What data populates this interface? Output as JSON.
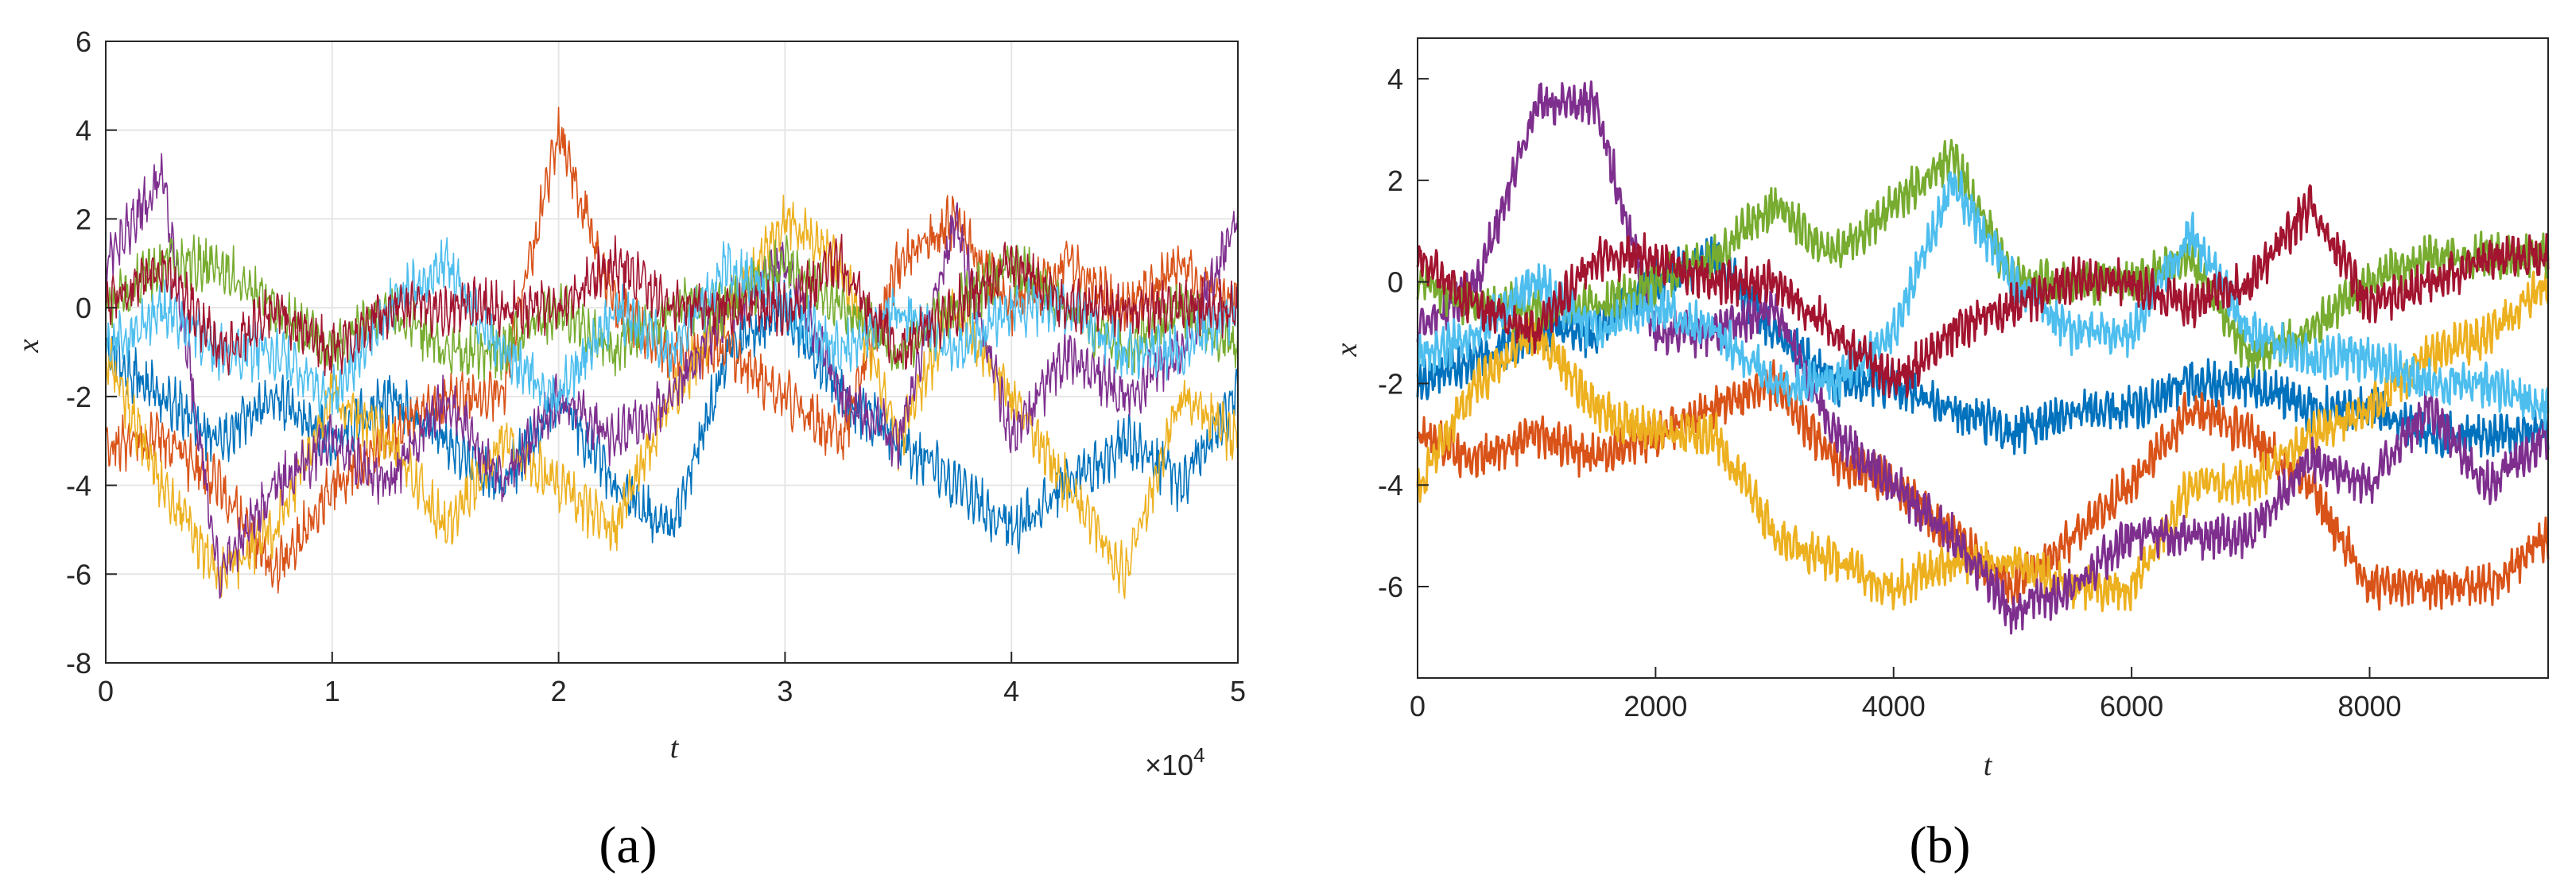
{
  "colors": {
    "series": [
      "#0072BD",
      "#D95319",
      "#EDB120",
      "#7E2F8E",
      "#77AC30",
      "#4DBEEE",
      "#A2142F"
    ],
    "axis": "#262626",
    "grid": "#e6e6e6"
  },
  "chart_data": [
    {
      "type": "line",
      "panel_label": "(a)",
      "xlabel": "t",
      "ylabel": "x",
      "x_multiplier": "×10",
      "x_multiplier_exp": "4",
      "xlim": [
        0,
        50000
      ],
      "ylim": [
        -8,
        6
      ],
      "grid": true,
      "xticks": [
        0,
        10000,
        20000,
        30000,
        40000,
        50000
      ],
      "xtick_labels": [
        "0",
        "1",
        "2",
        "3",
        "4",
        "5"
      ],
      "yticks": [
        -8,
        -6,
        -4,
        -2,
        0,
        2,
        4,
        6
      ],
      "ytick_labels": [
        "-8",
        "-6",
        "-4",
        "-2",
        "0",
        "2",
        "4",
        "6"
      ],
      "noise": 0.5,
      "x": [
        0,
        2500,
        5000,
        7500,
        10000,
        12500,
        15000,
        17500,
        20000,
        22500,
        25000,
        27500,
        30000,
        32500,
        35000,
        37500,
        40000,
        42500,
        45000,
        47500,
        50000
      ],
      "series": [
        {
          "values": [
            -1,
            -2,
            -3,
            -2,
            -3,
            -2,
            -3,
            -4,
            -2,
            -4,
            -5,
            -1,
            0,
            -2,
            -3,
            -4,
            -5,
            -4,
            -3,
            -4,
            -2
          ]
        },
        {
          "values": [
            -3,
            -3,
            -4,
            -6,
            -4,
            -3,
            -2,
            -2,
            4,
            0,
            -1,
            -1,
            -2,
            -3,
            1,
            2,
            0,
            1,
            0,
            1,
            0
          ]
        },
        {
          "values": [
            -1,
            -4,
            -6,
            -5,
            -2,
            -3,
            -5,
            -3,
            -4,
            -5,
            -2,
            0,
            2,
            1,
            -3,
            0,
            -2,
            -4,
            -6,
            -2,
            -3
          ]
        },
        {
          "values": [
            1,
            3,
            -6,
            -4,
            -3,
            -4,
            -2,
            -4,
            -2,
            -3,
            -2,
            0,
            1,
            -2,
            -3,
            2,
            -3,
            -1,
            -2,
            -1,
            2
          ]
        },
        {
          "values": [
            0,
            1,
            1,
            0,
            -1,
            0,
            -1,
            -1,
            0,
            -1,
            0,
            0,
            1,
            0,
            -1,
            0,
            1,
            0,
            -1,
            0,
            -1
          ]
        },
        {
          "values": [
            -1,
            0,
            -1,
            -1,
            -2,
            0,
            1,
            -1,
            -2,
            0,
            -1,
            1,
            0,
            -1,
            0,
            -1,
            0,
            0,
            -1,
            -1,
            0
          ]
        },
        {
          "values": [
            0,
            1,
            -1,
            0,
            -1,
            0,
            0,
            0,
            0,
            1,
            0,
            0,
            0,
            1,
            -1,
            0,
            1,
            0,
            0,
            0,
            0
          ]
        }
      ]
    },
    {
      "type": "line",
      "panel_label": "(b)",
      "xlabel": "t",
      "ylabel": "x",
      "xlim": [
        0,
        9500
      ],
      "ylim": [
        -7.8,
        4.8
      ],
      "grid": false,
      "xticks": [
        0,
        2000,
        4000,
        6000,
        8000
      ],
      "xtick_labels": [
        "0",
        "2000",
        "4000",
        "6000",
        "8000"
      ],
      "yticks": [
        -6,
        -4,
        -2,
        0,
        2,
        4
      ],
      "ytick_labels": [
        "-6",
        "-4",
        "-2",
        "0",
        "2",
        "4"
      ],
      "noise": 0.35,
      "x": [
        0,
        500,
        1000,
        1500,
        2000,
        2500,
        3000,
        3500,
        4000,
        4500,
        5000,
        5500,
        6000,
        6500,
        7000,
        7500,
        8000,
        8500,
        9000,
        9500
      ],
      "series": [
        {
          "values": [
            -2,
            -1.5,
            -1,
            -1,
            0,
            0.5,
            -1,
            -2,
            -2,
            -2.5,
            -3,
            -2.5,
            -2.5,
            -2,
            -2,
            -2.5,
            -2.5,
            -3,
            -3,
            -3
          ]
        },
        {
          "values": [
            -3,
            -3.5,
            -3,
            -3.5,
            -3,
            -2.5,
            -2,
            -3.5,
            -4,
            -5,
            -6,
            -5,
            -4,
            -2.5,
            -3,
            -4,
            -6,
            -6,
            -6,
            -5
          ]
        },
        {
          "values": [
            -4,
            -2,
            -1,
            -2.5,
            -3,
            -3,
            -5,
            -5.5,
            -6,
            -5.5,
            -5.5,
            -6,
            -6,
            -4,
            -4,
            -3,
            -2.5,
            -1.5,
            -1,
            0
          ]
        },
        {
          "values": [
            -1,
            0,
            3.5,
            3.5,
            -1,
            -1,
            -0.5,
            -3,
            -4,
            -5,
            -6.5,
            -6,
            -5,
            -5,
            -5,
            -3.5,
            -4,
            -2.5,
            -4,
            -3
          ]
        },
        {
          "values": [
            0,
            -0.5,
            -0.5,
            -0.5,
            0,
            0.5,
            1.5,
            0.5,
            1.5,
            2.5,
            0,
            0,
            0,
            0.5,
            -1.5,
            -1,
            0,
            0.5,
            0.5,
            0.5
          ]
        },
        {
          "values": [
            -1.5,
            -1,
            0,
            -1,
            -0.5,
            -1,
            -2,
            -2,
            -1,
            2,
            0,
            -1,
            -1,
            1,
            -1,
            -1.5,
            -1.5,
            -2,
            -2,
            -2.5
          ]
        },
        {
          "values": [
            0.5,
            -0.5,
            -1,
            0.5,
            0.5,
            0,
            0,
            -1,
            -2,
            -1,
            -0.5,
            0,
            0,
            -0.5,
            0,
            1.5,
            -0.5,
            0,
            0.5,
            0.5
          ]
        }
      ]
    }
  ]
}
